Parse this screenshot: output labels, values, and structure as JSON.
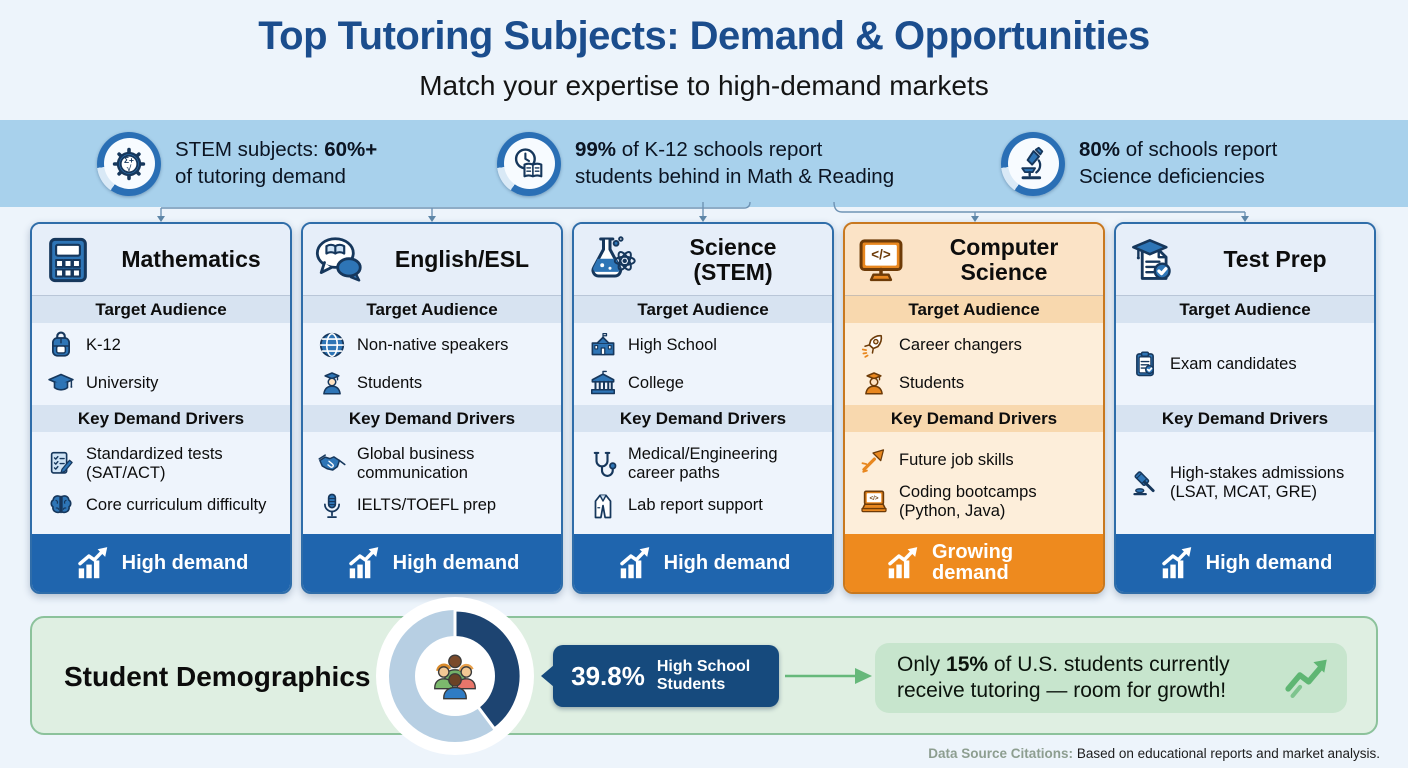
{
  "header": {
    "title": "Top Tutoring Subjects: Demand & Opportunities",
    "subtitle": "Match your expertise to high-demand markets"
  },
  "stats": [
    {
      "icon": "gear-math-icon",
      "lines": [
        [
          {
            "t": "STEM subjects: "
          },
          {
            "t": "60%+",
            "b": true
          }
        ],
        [
          {
            "t": "of tutoring demand"
          }
        ]
      ]
    },
    {
      "icon": "clock-book-icon",
      "lines": [
        [
          {
            "t": "99%",
            "b": true
          },
          {
            "t": " of K-12 schools report"
          }
        ],
        [
          {
            "t": "students behind in Math & Reading"
          }
        ]
      ]
    },
    {
      "icon": "microscope-icon",
      "lines": [
        [
          {
            "t": "80%",
            "b": true
          },
          {
            "t": " of schools report"
          }
        ],
        [
          {
            "t": "Science deficiencies"
          }
        ]
      ]
    }
  ],
  "sections": {
    "audience": "Target Audience",
    "drivers": "Key Demand Drivers"
  },
  "cards": [
    {
      "title": "Mathematics",
      "icon": "calculator-icon",
      "theme": "blue",
      "audience": [
        {
          "icon": "backpack-icon",
          "label": "K-12"
        },
        {
          "icon": "graduation-cap-icon",
          "label": "University"
        }
      ],
      "drivers": [
        {
          "icon": "test-checklist-icon",
          "label": "Standardized tests (SAT/ACT)"
        },
        {
          "icon": "brain-icon",
          "label": "Core curriculum difficulty"
        }
      ],
      "banner": {
        "label": "High demand",
        "icon": "chart-up-icon"
      }
    },
    {
      "title": "English/ESL",
      "icon": "speech-book-icon",
      "theme": "blue",
      "audience": [
        {
          "icon": "globe-icon",
          "label": "Non-native speakers"
        },
        {
          "icon": "student-icon",
          "label": "Students"
        }
      ],
      "drivers": [
        {
          "icon": "handshake-icon",
          "label": "Global business communication"
        },
        {
          "icon": "microphone-icon",
          "label": "IELTS/TOEFL prep"
        }
      ],
      "banner": {
        "label": "High demand",
        "icon": "chart-up-icon"
      }
    },
    {
      "title": "Science (STEM)",
      "icon": "flask-atom-icon",
      "theme": "blue",
      "audience": [
        {
          "icon": "school-icon",
          "label": "High School"
        },
        {
          "icon": "college-icon",
          "label": "College"
        }
      ],
      "drivers": [
        {
          "icon": "stethoscope-icon",
          "label": "Medical/Engineering career paths"
        },
        {
          "icon": "lab-coat-icon",
          "label": "Lab report support"
        }
      ],
      "banner": {
        "label": "High demand",
        "icon": "chart-up-icon"
      }
    },
    {
      "title": "Computer Science",
      "icon": "monitor-code-icon",
      "theme": "orange",
      "audience": [
        {
          "icon": "rocket-icon",
          "label": "Career changers"
        },
        {
          "icon": "student-icon",
          "label": "Students"
        }
      ],
      "drivers": [
        {
          "icon": "career-arrow-icon",
          "label": "Future job skills"
        },
        {
          "icon": "laptop-code-icon",
          "label": "Coding bootcamps (Python, Java)"
        }
      ],
      "banner": {
        "label": "Growing demand",
        "icon": "chart-up-icon"
      }
    },
    {
      "title": "Test Prep",
      "icon": "grad-certificate-icon",
      "theme": "blue",
      "audience": [
        {
          "icon": "clipboard-check-icon",
          "label": "Exam candidates"
        }
      ],
      "drivers": [
        {
          "icon": "gavel-icon",
          "label": "High-stakes admissions (LSAT, MCAT, GRE)"
        }
      ],
      "banner": {
        "label": "High demand",
        "icon": "chart-up-icon"
      }
    }
  ],
  "demographics": {
    "title": "Student Demographics",
    "chart": {
      "type": "donut",
      "value": 39.8,
      "label": "High School Students",
      "segment_color": "#1d4471",
      "rest_color": "#b7cfe3"
    },
    "badge": {
      "value": "39.8%",
      "label": "High School Students"
    },
    "callout": [
      {
        "t": "Only "
      },
      {
        "t": "15%",
        "b": true
      },
      {
        "t": " of U.S. students currently receive tutoring — room for growth!"
      }
    ]
  },
  "footer": {
    "label": "Data Source Citations:",
    "text": " Based on educational reports and market analysis."
  }
}
